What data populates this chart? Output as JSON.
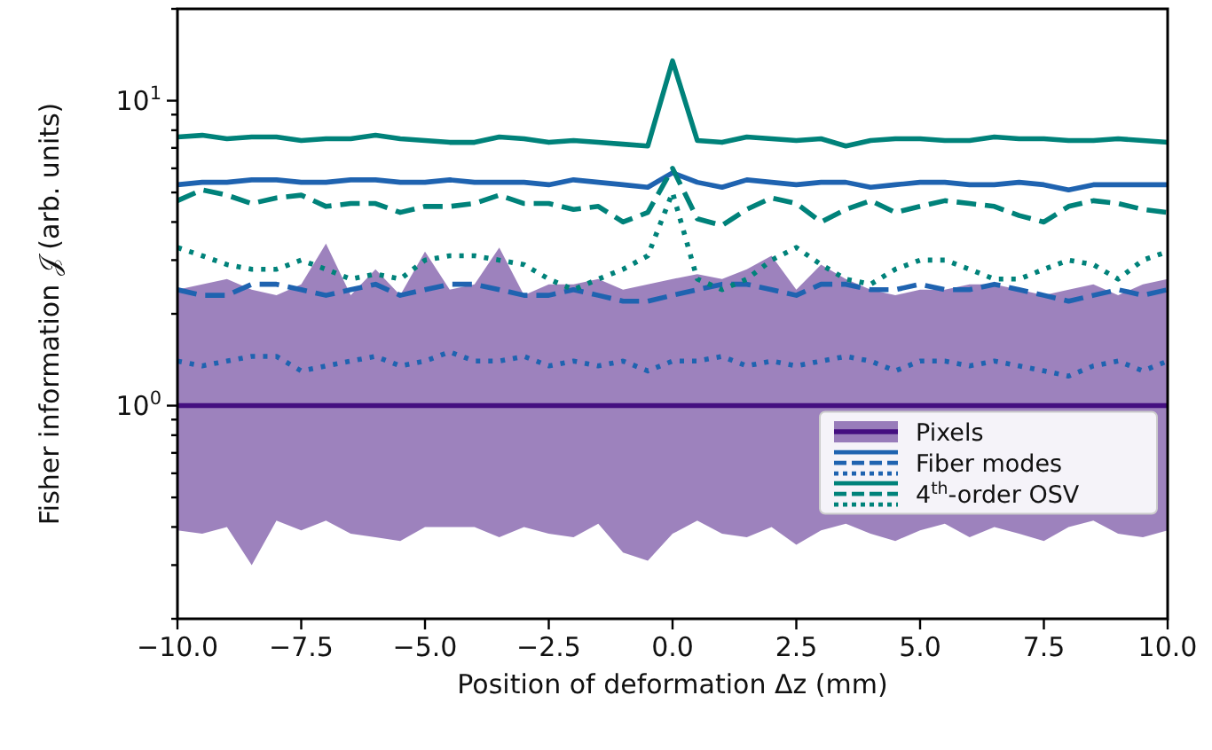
{
  "chart_data": {
    "type": "line",
    "xlabel": "Position of deformation Δz (mm)",
    "ylabel": "Fisher information 𝒥 (arb. units)",
    "x": [
      -10,
      -9.5,
      -9,
      -8.5,
      -8,
      -7.5,
      -7,
      -6.5,
      -6,
      -5.5,
      -5,
      -4.5,
      -4,
      -3.5,
      -3,
      -2.5,
      -2,
      -1.5,
      -1,
      -0.5,
      0,
      0.5,
      1,
      1.5,
      2,
      2.5,
      3,
      3.5,
      4,
      4.5,
      5,
      5.5,
      6,
      6.5,
      7,
      7.5,
      8,
      8.5,
      9,
      9.5,
      10
    ],
    "series": [
      {
        "name": "Pixels",
        "color": "#440f80",
        "line_style": "solid",
        "values": [
          1,
          1,
          1,
          1,
          1,
          1,
          1,
          1,
          1,
          1,
          1,
          1,
          1,
          1,
          1,
          1,
          1,
          1,
          1,
          1,
          1,
          1,
          1,
          1,
          1,
          1,
          1,
          1,
          1,
          1,
          1,
          1,
          1,
          1,
          1,
          1,
          1,
          1,
          1,
          1,
          1
        ],
        "lower": [
          0.39,
          0.38,
          0.4,
          0.3,
          0.42,
          0.39,
          0.42,
          0.38,
          0.37,
          0.36,
          0.4,
          0.4,
          0.4,
          0.37,
          0.4,
          0.38,
          0.37,
          0.41,
          0.33,
          0.31,
          0.38,
          0.42,
          0.38,
          0.37,
          0.4,
          0.35,
          0.39,
          0.41,
          0.38,
          0.36,
          0.39,
          0.41,
          0.37,
          0.4,
          0.38,
          0.36,
          0.4,
          0.42,
          0.38,
          0.37,
          0.39
        ],
        "upper": [
          2.4,
          2.5,
          2.6,
          2.4,
          2.3,
          2.5,
          3.4,
          2.3,
          2.8,
          2.3,
          3.2,
          2.4,
          2.5,
          3.3,
          2.3,
          2.5,
          2.5,
          2.6,
          2.4,
          2.5,
          2.6,
          2.7,
          2.6,
          2.8,
          3.1,
          2.4,
          2.9,
          2.6,
          2.4,
          2.3,
          2.4,
          2.4,
          2.5,
          2.5,
          2.4,
          2.3,
          2.4,
          2.5,
          2.3,
          2.5,
          2.6
        ]
      },
      {
        "name": "Fiber modes",
        "color": "#1f63b0",
        "line_style": "solid",
        "values": [
          5.3,
          5.4,
          5.4,
          5.5,
          5.5,
          5.4,
          5.4,
          5.5,
          5.5,
          5.4,
          5.4,
          5.5,
          5.4,
          5.4,
          5.4,
          5.3,
          5.5,
          5.4,
          5.3,
          5.2,
          5.8,
          5.4,
          5.2,
          5.5,
          5.4,
          5.3,
          5.4,
          5.4,
          5.2,
          5.3,
          5.4,
          5.4,
          5.3,
          5.3,
          5.4,
          5.3,
          5.1,
          5.3,
          5.3,
          5.3,
          5.3
        ]
      },
      {
        "color": "#1f63b0",
        "line_style": "dashed",
        "values": [
          2.4,
          2.3,
          2.3,
          2.5,
          2.5,
          2.4,
          2.3,
          2.4,
          2.5,
          2.3,
          2.4,
          2.5,
          2.5,
          2.4,
          2.3,
          2.3,
          2.4,
          2.3,
          2.2,
          2.2,
          2.3,
          2.4,
          2.5,
          2.5,
          2.4,
          2.3,
          2.5,
          2.5,
          2.4,
          2.4,
          2.5,
          2.4,
          2.4,
          2.5,
          2.4,
          2.3,
          2.2,
          2.3,
          2.4,
          2.3,
          2.4
        ]
      },
      {
        "color": "#1f63b0",
        "line_style": "dotted",
        "values": [
          1.4,
          1.35,
          1.4,
          1.45,
          1.45,
          1.3,
          1.35,
          1.4,
          1.45,
          1.35,
          1.4,
          1.5,
          1.4,
          1.4,
          1.45,
          1.35,
          1.4,
          1.35,
          1.4,
          1.3,
          1.4,
          1.4,
          1.45,
          1.35,
          1.4,
          1.35,
          1.4,
          1.45,
          1.4,
          1.3,
          1.4,
          1.4,
          1.35,
          1.4,
          1.35,
          1.3,
          1.25,
          1.35,
          1.4,
          1.3,
          1.4
        ]
      },
      {
        "name": "4$^{th}$-order OSV",
        "color": "#00827a",
        "line_style": "solid",
        "values": [
          7.6,
          7.7,
          7.5,
          7.6,
          7.6,
          7.4,
          7.5,
          7.5,
          7.7,
          7.5,
          7.4,
          7.3,
          7.3,
          7.6,
          7.5,
          7.3,
          7.4,
          7.3,
          7.2,
          7.1,
          13.5,
          7.4,
          7.3,
          7.6,
          7.5,
          7.4,
          7.5,
          7.1,
          7.4,
          7.5,
          7.5,
          7.4,
          7.4,
          7.6,
          7.5,
          7.5,
          7.4,
          7.4,
          7.5,
          7.4,
          7.3
        ]
      },
      {
        "color": "#00827a",
        "line_style": "dashed",
        "values": [
          4.7,
          5.1,
          4.9,
          4.6,
          4.8,
          4.9,
          4.5,
          4.6,
          4.6,
          4.3,
          4.5,
          4.5,
          4.6,
          4.9,
          4.6,
          4.6,
          4.4,
          4.5,
          4.0,
          4.3,
          6.0,
          4.1,
          3.9,
          4.4,
          4.8,
          4.6,
          4.0,
          4.4,
          4.7,
          4.3,
          4.5,
          4.7,
          4.6,
          4.5,
          4.2,
          4.0,
          4.5,
          4.7,
          4.6,
          4.4,
          4.3
        ]
      },
      {
        "color": "#00827a",
        "line_style": "dotted",
        "values": [
          3.3,
          3.1,
          2.9,
          2.8,
          2.8,
          3.0,
          2.8,
          2.6,
          2.7,
          2.6,
          3.0,
          3.1,
          3.1,
          3.0,
          2.9,
          2.6,
          2.4,
          2.6,
          2.8,
          3.1,
          5.0,
          2.6,
          2.4,
          2.6,
          3.0,
          3.3,
          2.9,
          2.6,
          2.5,
          2.8,
          3.0,
          3.0,
          2.8,
          2.6,
          2.6,
          2.8,
          3.0,
          2.9,
          2.6,
          3.0,
          3.2
        ]
      }
    ],
    "log": "y",
    "xlim": [
      -10,
      10
    ],
    "xticks": [
      {
        "value": -10,
        "label": "−10.0"
      },
      {
        "value": -7.5,
        "label": "−7.5"
      },
      {
        "value": -5,
        "label": "−5.0"
      },
      {
        "value": -2.5,
        "label": "−2.5"
      },
      {
        "value": 0,
        "label": "0.0"
      },
      {
        "value": 2.5,
        "label": "2.5"
      },
      {
        "value": 5,
        "label": "5.0"
      },
      {
        "value": 7.5,
        "label": "7.5"
      },
      {
        "value": 10,
        "label": "10.0"
      }
    ],
    "ylim": [
      0.2,
      20
    ],
    "yticks": [
      {
        "value": 0.2,
        "label": null
      },
      {
        "value": 0.3,
        "label": null
      },
      {
        "value": 0.4,
        "label": null
      },
      {
        "value": 0.5,
        "label": null
      },
      {
        "value": 0.6,
        "label": null
      },
      {
        "value": 0.7,
        "label": null
      },
      {
        "value": 0.8,
        "label": null
      },
      {
        "value": 0.9,
        "label": null
      },
      {
        "value": 1,
        "label": "10$^{0}$"
      },
      {
        "value": 2,
        "label": null
      },
      {
        "value": 3,
        "label": null
      },
      {
        "value": 4,
        "label": null
      },
      {
        "value": 5,
        "label": null
      },
      {
        "value": 6,
        "label": null
      },
      {
        "value": 7,
        "label": null
      },
      {
        "value": 8,
        "label": null
      },
      {
        "value": 9,
        "label": null
      },
      {
        "value": 10,
        "label": "10$^{1}$"
      },
      {
        "value": 20,
        "label": null
      }
    ],
    "grid": false,
    "legend": "bottom right"
  }
}
